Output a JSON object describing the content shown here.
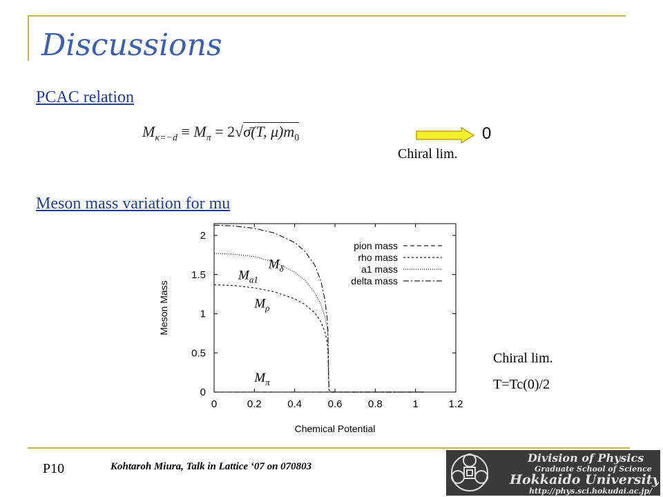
{
  "slide": {
    "title": "Discussions",
    "heading1": "PCAC relation",
    "heading2": "Meson mass variation for mu",
    "chiral_lim_1": "Chiral lim.",
    "chiral_lim_2": "Chiral lim.",
    "temperature_note": "T=Tc(0)/2",
    "page_number": "P10",
    "footer": "Kohtaroh Miura, Talk in Lattice ‘07 on 070803"
  },
  "equation": {
    "lhs": "M",
    "lhs_sub": "κ=−d",
    "equiv": "≡",
    "rhs_name": "M",
    "rhs_sub": "π",
    "rhs_eq": "= 2",
    "rhs_radicand": "σ̄(T, μ)m",
    "rhs_radicand_sub": "0",
    "result": "0"
  },
  "logo": {
    "line1": "Division of Physics",
    "line2": "Graduate School of Science",
    "line3": "Hokkaido University",
    "line4": "http://phys.sci.hokudai.ac.jp/"
  },
  "colors": {
    "accent_line": "#c8b24a",
    "title": "#3d5fb0",
    "heading": "#1f3f94",
    "arrow_fill": "#f2ef2a"
  },
  "chart_data": {
    "type": "line",
    "xlabel": "Chemical Potential",
    "ylabel": "Meson Mass",
    "xlim": [
      0,
      1.2
    ],
    "ylim": [
      0,
      2.15
    ],
    "x_ticks": [
      "0",
      "0.2",
      "0.4",
      "0.6",
      "0.8",
      "1",
      "1.2"
    ],
    "y_ticks": [
      "0",
      "0.5",
      "1",
      "1.5",
      "2"
    ],
    "series": [
      {
        "name": "pion mass",
        "dash": "6,4",
        "label": "M",
        "label_sub": "π",
        "x": [
          0,
          0.2,
          0.4,
          0.57,
          0.8,
          1.04
        ],
        "y": [
          0,
          0,
          0,
          0,
          0,
          0
        ]
      },
      {
        "name": "rho mass",
        "dash": "3,3",
        "label": "M",
        "label_sub": "ρ",
        "x": [
          0,
          0.1,
          0.2,
          0.3,
          0.4,
          0.45,
          0.5,
          0.53,
          0.55,
          0.56,
          0.565,
          0.57,
          0.58,
          0.7,
          0.9,
          1.04
        ],
        "y": [
          1.37,
          1.36,
          1.33,
          1.28,
          1.19,
          1.12,
          1.01,
          0.9,
          0.77,
          0.66,
          0.55,
          0.03,
          0,
          0,
          0,
          0
        ]
      },
      {
        "name": "a1 mass",
        "dash": "1,2",
        "label": "M",
        "label_sub": "a1",
        "x": [
          0,
          0.1,
          0.2,
          0.3,
          0.4,
          0.45,
          0.5,
          0.53,
          0.55,
          0.56,
          0.565,
          0.57,
          0.58,
          0.7,
          0.9,
          1.04
        ],
        "y": [
          1.77,
          1.76,
          1.73,
          1.66,
          1.53,
          1.43,
          1.27,
          1.12,
          0.97,
          0.83,
          0.72,
          0.03,
          0,
          0,
          0,
          0
        ]
      },
      {
        "name": "delta mass",
        "dash": "8,3,2,3",
        "label": "M",
        "label_sub": "δ",
        "x": [
          0,
          0.1,
          0.2,
          0.3,
          0.4,
          0.45,
          0.5,
          0.53,
          0.55,
          0.56,
          0.565,
          0.57,
          0.58,
          0.7,
          0.9,
          1.04
        ],
        "y": [
          2.13,
          2.12,
          2.09,
          2.03,
          1.91,
          1.8,
          1.62,
          1.42,
          1.18,
          0.98,
          0.8,
          0.03,
          0,
          0,
          0,
          0
        ]
      }
    ]
  }
}
